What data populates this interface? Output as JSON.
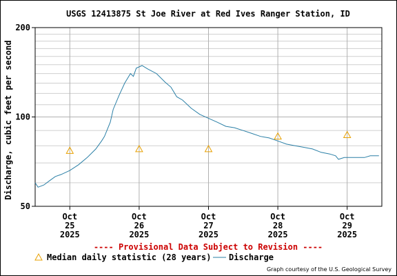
{
  "chart_data": {
    "type": "line",
    "title": "USGS 12413875 St Joe River at Red Ives Ranger Station, ID",
    "ylabel": "Discharge, cubic feet per second",
    "yscale": "log",
    "ylim": [
      50,
      200
    ],
    "y_tick_labels": [
      "200",
      "100",
      "50"
    ],
    "y_ticks": [
      200,
      100,
      50
    ],
    "xlim": [
      "2025-10-24T12:00",
      "2025-10-29T12:00"
    ],
    "x_ticks": [
      {
        "month": "Oct",
        "day": "25",
        "year": "2025",
        "at": "2025-10-25T00:00"
      },
      {
        "month": "Oct",
        "day": "26",
        "year": "2025",
        "at": "2025-10-26T00:00"
      },
      {
        "month": "Oct",
        "day": "27",
        "year": "2025",
        "at": "2025-10-27T00:00"
      },
      {
        "month": "Oct",
        "day": "28",
        "year": "2025",
        "at": "2025-10-28T00:00"
      },
      {
        "month": "Oct",
        "day": "29",
        "year": "2025",
        "at": "2025-10-29T00:00"
      }
    ],
    "grid": true,
    "legend_position": "bottom",
    "series": [
      {
        "name": "Discharge",
        "color": "#2a7fa6",
        "points": [
          [
            "2025-10-24T12:00",
            60
          ],
          [
            "2025-10-24T13:00",
            58
          ],
          [
            "2025-10-24T15:00",
            59
          ],
          [
            "2025-10-24T17:00",
            61
          ],
          [
            "2025-10-24T19:00",
            63
          ],
          [
            "2025-10-24T21:00",
            64
          ],
          [
            "2025-10-25T00:00",
            66
          ],
          [
            "2025-10-25T03:00",
            69
          ],
          [
            "2025-10-25T06:00",
            73
          ],
          [
            "2025-10-25T09:00",
            78
          ],
          [
            "2025-10-25T11:00",
            83
          ],
          [
            "2025-10-25T12:00",
            86
          ],
          [
            "2025-10-25T14:00",
            96
          ],
          [
            "2025-10-25T15:00",
            106
          ],
          [
            "2025-10-25T17:00",
            118
          ],
          [
            "2025-10-25T19:00",
            130
          ],
          [
            "2025-10-25T21:00",
            140
          ],
          [
            "2025-10-25T22:00",
            137
          ],
          [
            "2025-10-25T23:00",
            146
          ],
          [
            "2025-10-26T01:00",
            149
          ],
          [
            "2025-10-26T03:00",
            145
          ],
          [
            "2025-10-26T06:00",
            140
          ],
          [
            "2025-10-26T09:00",
            131
          ],
          [
            "2025-10-26T11:00",
            126
          ],
          [
            "2025-10-26T13:00",
            117
          ],
          [
            "2025-10-26T15:00",
            114
          ],
          [
            "2025-10-26T18:00",
            107
          ],
          [
            "2025-10-26T21:00",
            102
          ],
          [
            "2025-10-27T00:00",
            99
          ],
          [
            "2025-10-27T03:00",
            96
          ],
          [
            "2025-10-27T06:00",
            93
          ],
          [
            "2025-10-27T09:00",
            92
          ],
          [
            "2025-10-27T12:00",
            90
          ],
          [
            "2025-10-27T15:00",
            88
          ],
          [
            "2025-10-27T18:00",
            86
          ],
          [
            "2025-10-27T21:00",
            85
          ],
          [
            "2025-10-28T00:00",
            83
          ],
          [
            "2025-10-28T03:00",
            81
          ],
          [
            "2025-10-28T06:00",
            80
          ],
          [
            "2025-10-28T09:00",
            79
          ],
          [
            "2025-10-28T12:00",
            78
          ],
          [
            "2025-10-28T15:00",
            76
          ],
          [
            "2025-10-28T18:00",
            75
          ],
          [
            "2025-10-28T20:00",
            74
          ],
          [
            "2025-10-28T21:00",
            72
          ],
          [
            "2025-10-28T23:00",
            73
          ],
          [
            "2025-10-29T01:00",
            73
          ],
          [
            "2025-10-29T04:00",
            73
          ],
          [
            "2025-10-29T06:00",
            73
          ],
          [
            "2025-10-29T08:00",
            74
          ],
          [
            "2025-10-29T11:00",
            74
          ]
        ]
      },
      {
        "name": "Median daily statistic (28 years)",
        "color": "#e8a000",
        "marker": "triangle",
        "points": [
          [
            "2025-10-25T00:00",
            77
          ],
          [
            "2025-10-26T00:00",
            78
          ],
          [
            "2025-10-27T00:00",
            78
          ],
          [
            "2025-10-28T00:00",
            86
          ],
          [
            "2025-10-29T00:00",
            87
          ]
        ]
      }
    ],
    "annotations": {
      "provisional": "---- Provisional Data Subject to Revision ----",
      "provisional_color": "#cc0000",
      "credit": "Graph courtesy of the U.S. Geological Survey"
    },
    "legend": [
      {
        "label": "Median daily statistic (28 years)",
        "marker": "triangle",
        "color": "#e8a000"
      },
      {
        "label": "Discharge",
        "marker": "line",
        "color": "#2a7fa6"
      }
    ]
  }
}
